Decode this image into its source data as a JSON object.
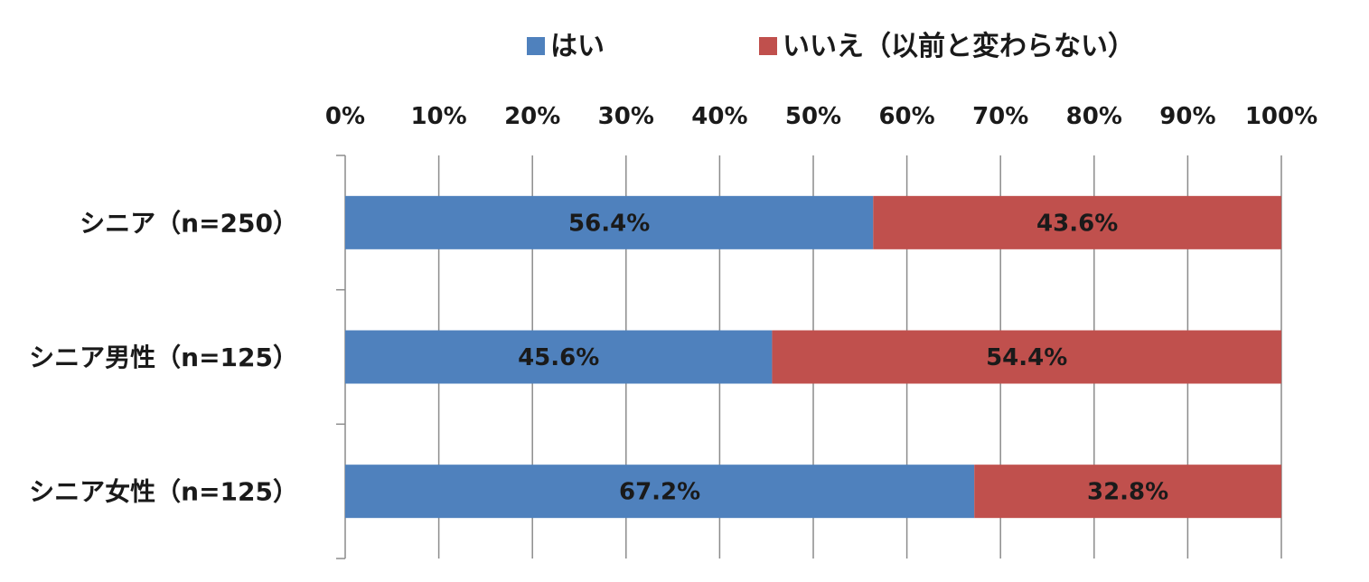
{
  "chart_data": {
    "type": "bar",
    "orientation": "horizontal",
    "stacked": true,
    "stack_mode": "percent",
    "categories": [
      "シニア（n=250）",
      "シニア男性（n=125）",
      "シニア女性（n=125）"
    ],
    "series": [
      {
        "name": "はい",
        "color": "#4F81BD",
        "values": [
          56.4,
          45.6,
          67.2
        ],
        "labels": [
          "56.4%",
          "45.6%",
          "67.2%"
        ]
      },
      {
        "name": "いいえ（以前と変わらない）",
        "color": "#C0504D",
        "values": [
          43.6,
          54.4,
          32.8
        ],
        "labels": [
          "43.6%",
          "54.4%",
          "32.8%"
        ]
      }
    ],
    "xlim": [
      0,
      100
    ],
    "x_ticks": [
      "0%",
      "10%",
      "20%",
      "30%",
      "40%",
      "50%",
      "60%",
      "70%",
      "80%",
      "90%",
      "100%"
    ],
    "axis_position": "top",
    "grid": true,
    "legend_position": "top",
    "title": "",
    "xlabel": "",
    "ylabel": ""
  }
}
